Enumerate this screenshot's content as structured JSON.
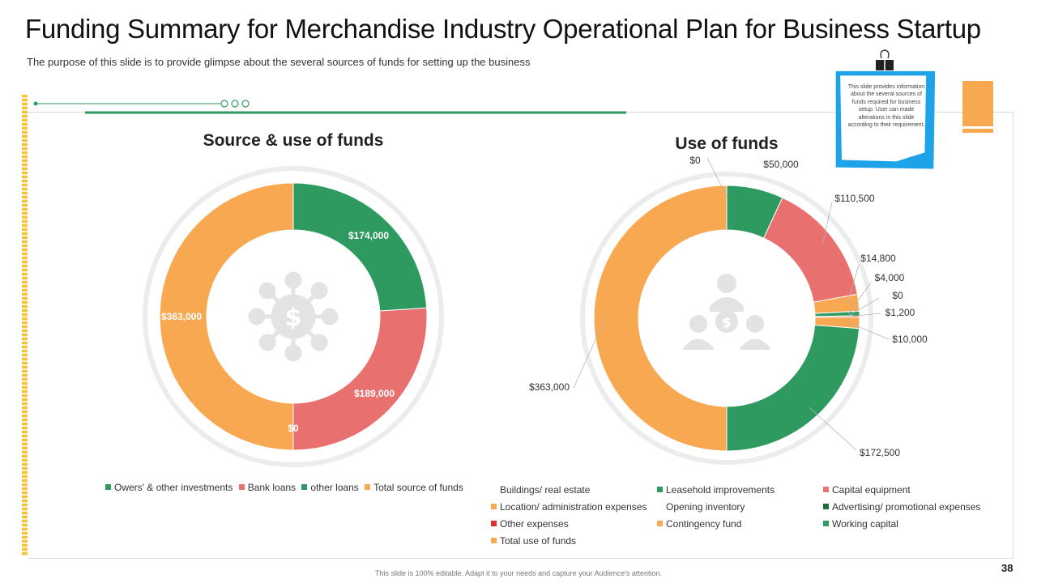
{
  "slide": {
    "title": "Funding Summary for Merchandise Industry Operational Plan for Business Startup",
    "subtitle": "The purpose of this slide is to provide glimpse about the several sources of funds for setting up the business",
    "note": "This slide provides information about the several sources of funds required for business setup. User can made alterations in this slide according to their requirement.",
    "page_number": "38",
    "footer": "This slide is 100% editable. Adapt it to your needs and capture your Audience's attention.",
    "icons": {
      "left_center": "network-dollar-icon",
      "right_center": "people-dollar-icon",
      "binder_clip": "binder-clip-icon"
    }
  },
  "chart_data": [
    {
      "type": "pie",
      "variant": "donut",
      "title": "Source & use of funds",
      "slices": [
        {
          "name": "Owers' & other investments",
          "value": 174000,
          "label": "$174,000",
          "color": "#2e9a5f"
        },
        {
          "name": "Bank loans",
          "value": 189000,
          "label": "$189,000",
          "color": "#e8706e"
        },
        {
          "name": "other loans",
          "value": 0,
          "label": "$0",
          "color": "#2e9a5f"
        },
        {
          "name": "Total source of funds",
          "value": 363000,
          "label": "$363,000",
          "color": "#f9a852"
        }
      ],
      "legend_position": "bottom"
    },
    {
      "type": "pie",
      "variant": "donut",
      "title": "Use of funds",
      "slices": [
        {
          "name": "Buildings/ real estate",
          "value": 0,
          "label": "$0",
          "color": "#f9a852"
        },
        {
          "name": "Leasehold improvements",
          "value": 50000,
          "label": "$50,000",
          "color": "#2e9a5f"
        },
        {
          "name": "Capital equipment",
          "value": 110500,
          "label": "$110,500",
          "color": "#e8706e"
        },
        {
          "name": "Location/ administration expenses",
          "value": 14800,
          "label": "$14,800",
          "color": "#f9a852"
        },
        {
          "name": "Opening inventory",
          "value": 4000,
          "label": "$4,000",
          "color": "#2e9a5f"
        },
        {
          "name": "Advertising/ promotional expenses",
          "value": 0,
          "label": "$0",
          "color": "#1e6b3a"
        },
        {
          "name": "Other expenses",
          "value": 1200,
          "label": "$1,200",
          "color": "#d9312b"
        },
        {
          "name": "Contingency fund",
          "value": 10000,
          "label": "$10,000",
          "color": "#f9a852"
        },
        {
          "name": "Working capital",
          "value": 172500,
          "label": "$172,500",
          "color": "#2e9a5f"
        },
        {
          "name": "Total use of funds",
          "value": 363000,
          "label": "$363,000",
          "color": "#f9a852"
        }
      ],
      "legend_position": "bottom"
    }
  ]
}
